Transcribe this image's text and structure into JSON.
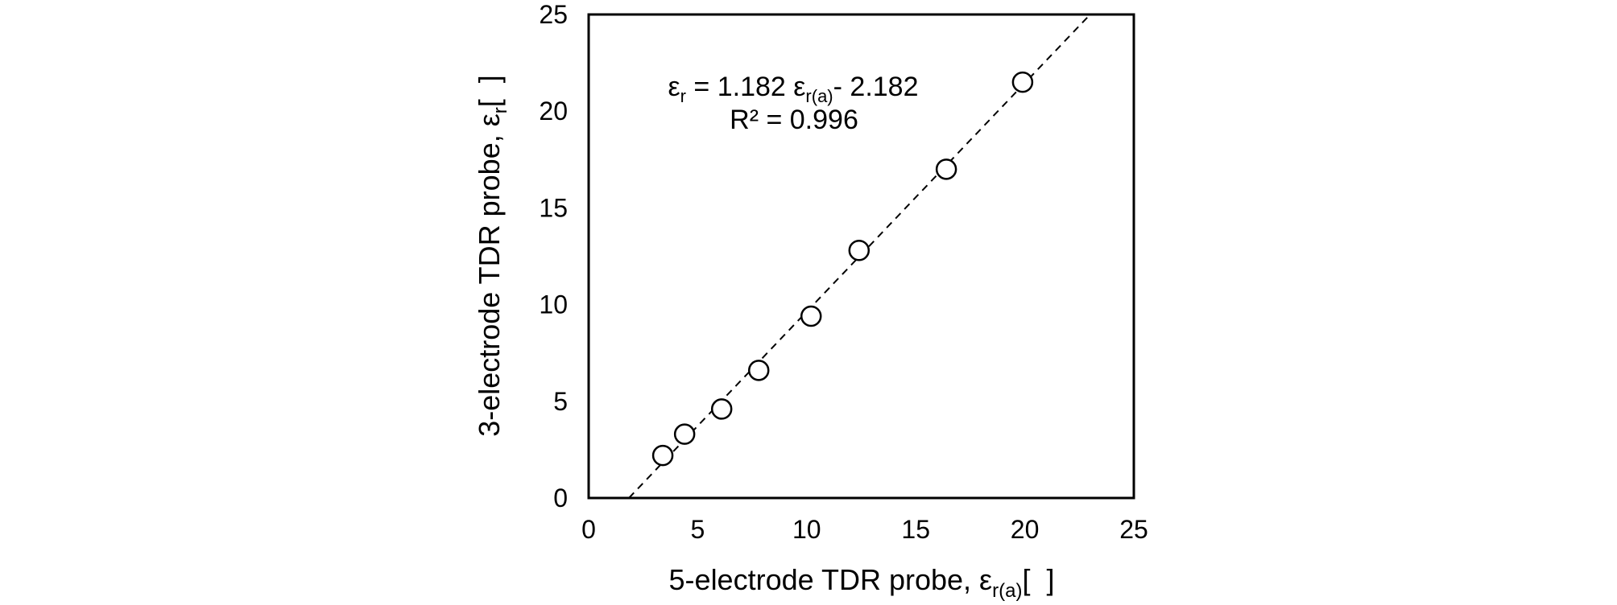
{
  "chart_data": {
    "type": "scatter",
    "xlabel": "5-electrode TDR probe, ε",
    "xlabel_sub": "r(a)",
    "xlabel_unit": "[  ]",
    "ylabel": "3-electrode TDR probe, ε",
    "ylabel_sub": "r",
    "ylabel_unit": "[  ]",
    "xlim": [
      0,
      25
    ],
    "ylim": [
      0,
      25
    ],
    "xticks": [
      0,
      5,
      10,
      15,
      20,
      25
    ],
    "yticks": [
      0,
      5,
      10,
      15,
      20,
      25
    ],
    "grid": false,
    "series": [
      {
        "marker": "open-circle",
        "points": [
          {
            "x": 3.4,
            "y": 2.2
          },
          {
            "x": 4.4,
            "y": 3.3
          },
          {
            "x": 6.1,
            "y": 4.6
          },
          {
            "x": 7.8,
            "y": 6.6
          },
          {
            "x": 10.2,
            "y": 9.4
          },
          {
            "x": 12.4,
            "y": 12.8
          },
          {
            "x": 16.4,
            "y": 17.0
          },
          {
            "x": 19.9,
            "y": 21.5
          }
        ]
      }
    ],
    "trendline": {
      "style": "dashed",
      "slope": 1.182,
      "intercept": -2.182
    },
    "annotation": {
      "eq_lhs": "ε",
      "eq_lhs_sub": "r",
      "eq_mid": " = 1.182 ε",
      "eq_rhs_sub": "r(a)",
      "eq_tail": "- 2.182",
      "r2": "R² = 0.996"
    },
    "colors": {
      "marker_stroke": "#000000",
      "line": "#000000"
    }
  }
}
